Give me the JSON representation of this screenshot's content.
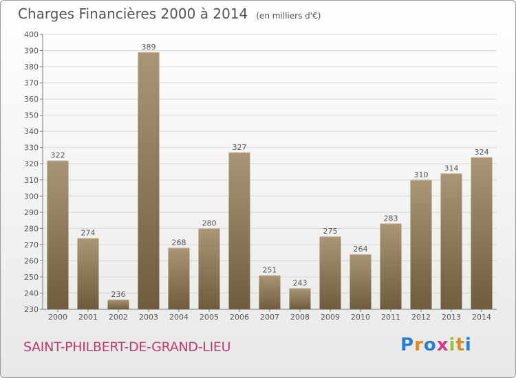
{
  "header": {
    "title": "Charges Financières 2000 à 2014",
    "subtitle": "(en milliers d'€)"
  },
  "footer": {
    "city": "SAINT-PHILBERT-DE-GRAND-LIEU",
    "logo": "Proxiti"
  },
  "colors": {
    "bar_top": "#a89676",
    "bar_bottom": "#6e5c3c",
    "grid": "#d8d8d8",
    "text": "#555555",
    "city": "#c0396b"
  },
  "chart_data": {
    "type": "bar",
    "title": "Charges Financières 2000 à 2014",
    "subtitle": "(en milliers d'€)",
    "categories": [
      "2000",
      "2001",
      "2002",
      "2003",
      "2004",
      "2005",
      "2006",
      "2007",
      "2008",
      "2009",
      "2010",
      "2011",
      "2012",
      "2013",
      "2014"
    ],
    "values": [
      322,
      274,
      236,
      389,
      268,
      280,
      327,
      251,
      243,
      275,
      264,
      283,
      310,
      314,
      324
    ],
    "ylim": [
      230,
      400
    ],
    "yticks": [
      230,
      240,
      250,
      260,
      270,
      280,
      290,
      300,
      310,
      320,
      330,
      340,
      350,
      360,
      370,
      380,
      390,
      400
    ],
    "grid": true,
    "xlabel": "",
    "ylabel": ""
  }
}
